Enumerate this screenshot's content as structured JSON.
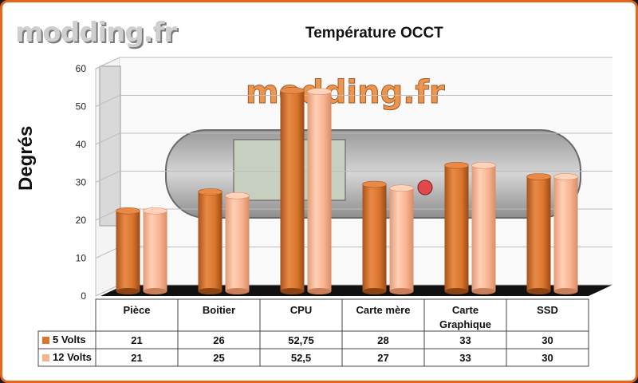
{
  "watermark": "modding.fr",
  "chart_data": {
    "type": "bar",
    "title": "Température OCCT",
    "ylabel": "Degrés",
    "xlabel": "",
    "ylim": [
      0,
      60
    ],
    "yticks": [
      0,
      10,
      20,
      30,
      40,
      50,
      60
    ],
    "categories": [
      "Pièce",
      "Boitier",
      "CPU",
      "Carte mère",
      "Carte\nGraphique",
      "SSD"
    ],
    "series": [
      {
        "name": "5 Volts",
        "values": [
          21,
          26,
          52.75,
          28,
          33,
          30
        ],
        "labels": [
          "21",
          "26",
          "52,75",
          "28",
          "33",
          "30"
        ],
        "color": "#d9762e"
      },
      {
        "name": "12 Volts",
        "values": [
          21,
          25,
          52.5,
          27,
          33,
          30
        ],
        "labels": [
          "21",
          "25",
          "52,5",
          "27",
          "33",
          "30"
        ],
        "color": "#f7b390"
      }
    ],
    "grid": true,
    "legend": "data-table"
  },
  "colors": {
    "frame": "#e8661c",
    "floor": "#111111",
    "grid": "#bdbdbd"
  }
}
